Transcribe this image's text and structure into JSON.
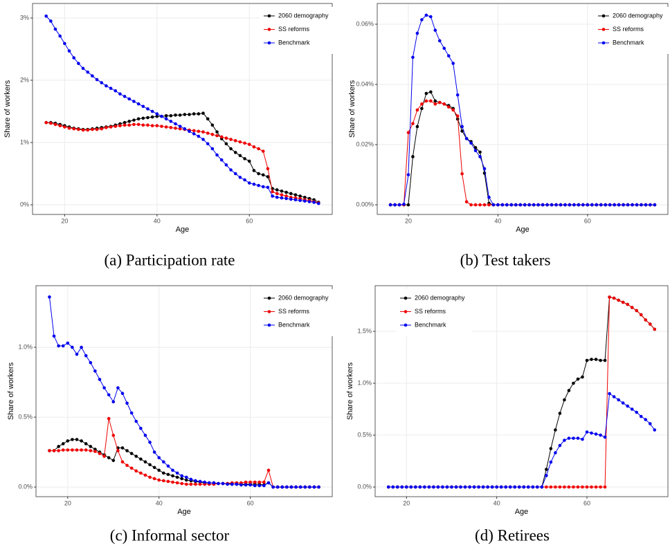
{
  "chart_data": [
    {
      "type": "line",
      "caption": "(a) Participation rate",
      "x_label": "Age",
      "y_label": "Share of workers",
      "x": [
        16,
        17,
        18,
        19,
        20,
        21,
        22,
        23,
        24,
        25,
        26,
        27,
        28,
        29,
        30,
        31,
        32,
        33,
        34,
        35,
        36,
        37,
        38,
        39,
        40,
        41,
        42,
        43,
        44,
        45,
        46,
        47,
        48,
        49,
        50,
        51,
        52,
        53,
        54,
        55,
        56,
        57,
        58,
        59,
        60,
        61,
        62,
        63,
        64,
        65,
        66,
        67,
        68,
        69,
        70,
        71,
        72,
        73,
        74,
        75
      ],
      "xlim": [
        13.05,
        77.95
      ],
      "xticks": [
        20,
        40,
        60
      ],
      "ylim": [
        -0.155,
        3.233
      ],
      "yticks": [
        {
          "value": 0,
          "label": "0%"
        },
        {
          "value": 1,
          "label": "1%"
        },
        {
          "value": 2,
          "label": "2%"
        },
        {
          "value": 3,
          "label": "3%"
        }
      ],
      "grid": true,
      "legend": "top-right",
      "series": [
        {
          "name": "2060 demography",
          "color": "#000000",
          "values": [
            1.32,
            1.32,
            1.31,
            1.29,
            1.27,
            1.25,
            1.23,
            1.22,
            1.21,
            1.21,
            1.22,
            1.23,
            1.24,
            1.25,
            1.26,
            1.28,
            1.3,
            1.32,
            1.34,
            1.36,
            1.38,
            1.39,
            1.4,
            1.41,
            1.42,
            1.42,
            1.43,
            1.43,
            1.44,
            1.44,
            1.45,
            1.45,
            1.46,
            1.46,
            1.47,
            1.38,
            1.28,
            1.17,
            1.06,
            0.98,
            0.9,
            0.84,
            0.79,
            0.74,
            0.7,
            0.55,
            0.5,
            0.48,
            0.45,
            0.26,
            0.24,
            0.22,
            0.2,
            0.18,
            0.16,
            0.14,
            0.12,
            0.1,
            0.08,
            0.04
          ]
        },
        {
          "name": "SS reforms",
          "color": "#ee0000",
          "values": [
            1.32,
            1.31,
            1.29,
            1.27,
            1.25,
            1.23,
            1.22,
            1.21,
            1.2,
            1.2,
            1.21,
            1.21,
            1.22,
            1.24,
            1.25,
            1.26,
            1.27,
            1.28,
            1.28,
            1.29,
            1.29,
            1.28,
            1.28,
            1.27,
            1.27,
            1.26,
            1.25,
            1.24,
            1.23,
            1.22,
            1.21,
            1.2,
            1.19,
            1.18,
            1.17,
            1.15,
            1.13,
            1.11,
            1.09,
            1.07,
            1.05,
            1.03,
            1.01,
            0.99,
            0.97,
            0.93,
            0.9,
            0.86,
            0.58,
            0.21,
            0.18,
            0.16,
            0.14,
            0.12,
            0.11,
            0.1,
            0.08,
            0.07,
            0.05,
            0.03
          ]
        },
        {
          "name": "Benchmark",
          "color": "#0000ee",
          "values": [
            3.03,
            2.95,
            2.82,
            2.71,
            2.59,
            2.47,
            2.36,
            2.27,
            2.19,
            2.13,
            2.07,
            2.01,
            1.96,
            1.91,
            1.87,
            1.83,
            1.78,
            1.74,
            1.7,
            1.66,
            1.62,
            1.58,
            1.54,
            1.5,
            1.46,
            1.42,
            1.38,
            1.34,
            1.3,
            1.26,
            1.22,
            1.18,
            1.14,
            1.1,
            1.05,
            0.98,
            0.9,
            0.8,
            0.72,
            0.64,
            0.56,
            0.5,
            0.44,
            0.4,
            0.35,
            0.33,
            0.31,
            0.29,
            0.28,
            0.14,
            0.12,
            0.11,
            0.1,
            0.09,
            0.08,
            0.07,
            0.06,
            0.05,
            0.04,
            0.02
          ]
        }
      ]
    },
    {
      "type": "line",
      "caption": "(b) Test takers",
      "x_label": "Age",
      "y_label": "Share of workers",
      "x": [
        16,
        17,
        18,
        19,
        20,
        21,
        22,
        23,
        24,
        25,
        26,
        27,
        28,
        29,
        30,
        31,
        32,
        33,
        34,
        35,
        36,
        37,
        38,
        39,
        40,
        41,
        42,
        43,
        44,
        45,
        46,
        47,
        48,
        49,
        50,
        51,
        52,
        53,
        54,
        55,
        56,
        57,
        58,
        59,
        60,
        61,
        62,
        63,
        64,
        65,
        66,
        67,
        68,
        69,
        70,
        71,
        72,
        73,
        74,
        75
      ],
      "xlim": [
        13.05,
        77.95
      ],
      "xticks": [
        20,
        40,
        60
      ],
      "ylim": [
        -0.0032,
        0.0669
      ],
      "yticks": [
        {
          "value": 0,
          "label": "0.00%"
        },
        {
          "value": 0.02,
          "label": "0.02%"
        },
        {
          "value": 0.04,
          "label": "0.04%"
        },
        {
          "value": 0.06,
          "label": "0.06%"
        }
      ],
      "grid": true,
      "legend": "top-right",
      "series": [
        {
          "name": "2060 demography",
          "color": "#000000",
          "values": [
            0,
            0,
            0,
            0,
            0,
            0.016,
            0.026,
            0.032,
            0.037,
            0.0375,
            0.0345,
            0.034,
            0.0335,
            0.033,
            0.032,
            0.0285,
            0.0245,
            0.022,
            0.021,
            0.019,
            0.0175,
            0.0105,
            0.0005,
            0,
            0,
            0,
            0,
            0,
            0,
            0,
            0,
            0,
            0,
            0,
            0,
            0,
            0,
            0,
            0,
            0,
            0,
            0,
            0,
            0,
            0,
            0,
            0,
            0,
            0,
            0,
            0,
            0,
            0,
            0,
            0,
            0,
            0,
            0,
            0,
            0
          ]
        },
        {
          "name": "SS reforms",
          "color": "#ee0000",
          "values": [
            0,
            0,
            0,
            0,
            0.024,
            0.027,
            0.0315,
            0.0335,
            0.0345,
            0.0345,
            0.0335,
            0.034,
            0.0335,
            0.0325,
            0.0315,
            0.0295,
            0.0103,
            0.001,
            0,
            0,
            0,
            0,
            0,
            0,
            0,
            0,
            0,
            0,
            0,
            0,
            0,
            0,
            0,
            0,
            0,
            0,
            0,
            0,
            0,
            0,
            0,
            0,
            0,
            0,
            0,
            0,
            0,
            0,
            0,
            0,
            0,
            0,
            0,
            0,
            0,
            0,
            0,
            0,
            0,
            0
          ]
        },
        {
          "name": "Benchmark",
          "color": "#0000ee",
          "values": [
            0,
            0,
            0,
            0.0002,
            0.01,
            0.049,
            0.057,
            0.0615,
            0.063,
            0.0625,
            0.058,
            0.0545,
            0.052,
            0.0495,
            0.047,
            0.0365,
            0.026,
            0.022,
            0.0205,
            0.018,
            0.016,
            0.012,
            0.0025,
            0,
            0,
            0,
            0,
            0,
            0,
            0,
            0,
            0,
            0,
            0,
            0,
            0,
            0,
            0,
            0,
            0,
            0,
            0,
            0,
            0,
            0,
            0,
            0,
            0,
            0,
            0,
            0,
            0,
            0,
            0,
            0,
            0,
            0,
            0,
            0,
            0
          ]
        }
      ]
    },
    {
      "type": "line",
      "caption": "(c) Informal sector",
      "x_label": "Age",
      "y_label": "Share of workers",
      "x": [
        16,
        17,
        18,
        19,
        20,
        21,
        22,
        23,
        24,
        25,
        26,
        27,
        28,
        29,
        30,
        31,
        32,
        33,
        34,
        35,
        36,
        37,
        38,
        39,
        40,
        41,
        42,
        43,
        44,
        45,
        46,
        47,
        48,
        49,
        50,
        51,
        52,
        53,
        54,
        55,
        56,
        57,
        58,
        59,
        60,
        61,
        62,
        63,
        64,
        65,
        66,
        67,
        68,
        69,
        70,
        71,
        72,
        73,
        74,
        75
      ],
      "xlim": [
        13.05,
        77.95
      ],
      "xticks": [
        20,
        40,
        60
      ],
      "ylim": [
        -0.069,
        1.441
      ],
      "yticks": [
        {
          "value": 0,
          "label": "0.0%"
        },
        {
          "value": 0.5,
          "label": "0.5%"
        },
        {
          "value": 1,
          "label": "1.0%"
        }
      ],
      "grid": true,
      "legend": "top-right",
      "series": [
        {
          "name": "2060 demography",
          "color": "#000000",
          "values": [
            0.26,
            0.26,
            0.29,
            0.31,
            0.33,
            0.34,
            0.34,
            0.33,
            0.31,
            0.29,
            0.27,
            0.25,
            0.23,
            0.21,
            0.19,
            0.28,
            0.28,
            0.26,
            0.24,
            0.22,
            0.2,
            0.18,
            0.16,
            0.14,
            0.12,
            0.1,
            0.09,
            0.08,
            0.07,
            0.06,
            0.05,
            0.045,
            0.04,
            0.035,
            0.03,
            0.03,
            0.03,
            0.025,
            0.025,
            0.025,
            0.02,
            0.02,
            0.02,
            0.02,
            0.02,
            0.02,
            0.02,
            0.015,
            0.03,
            0,
            0,
            0,
            0,
            0,
            0,
            0,
            0,
            0,
            0,
            0
          ]
        },
        {
          "name": "SS reforms",
          "color": "#ee0000",
          "values": [
            0.26,
            0.26,
            0.26,
            0.265,
            0.265,
            0.265,
            0.265,
            0.265,
            0.265,
            0.26,
            0.255,
            0.24,
            0.22,
            0.49,
            0.37,
            0.26,
            0.18,
            0.155,
            0.135,
            0.115,
            0.1,
            0.085,
            0.07,
            0.06,
            0.05,
            0.045,
            0.04,
            0.035,
            0.03,
            0.025,
            0.02,
            0.02,
            0.02,
            0.02,
            0.02,
            0.02,
            0.02,
            0.025,
            0.025,
            0.025,
            0.03,
            0.03,
            0.03,
            0.035,
            0.035,
            0.035,
            0.035,
            0.035,
            0.12,
            0,
            0,
            0,
            0,
            0,
            0,
            0,
            0,
            0,
            0,
            0
          ]
        },
        {
          "name": "Benchmark",
          "color": "#0000ee",
          "values": [
            1.36,
            1.08,
            1.01,
            1.01,
            1.03,
            1.0,
            0.95,
            1.0,
            0.94,
            0.89,
            0.83,
            0.77,
            0.71,
            0.66,
            0.61,
            0.71,
            0.67,
            0.6,
            0.53,
            0.47,
            0.42,
            0.37,
            0.32,
            0.25,
            0.21,
            0.18,
            0.15,
            0.12,
            0.1,
            0.08,
            0.07,
            0.055,
            0.045,
            0.04,
            0.035,
            0.03,
            0.03,
            0.025,
            0.025,
            0.02,
            0.02,
            0.02,
            0.015,
            0.015,
            0.015,
            0.01,
            0.01,
            0.01,
            0.03,
            0,
            0,
            0,
            0,
            0,
            0,
            0,
            0,
            0,
            0,
            0
          ]
        }
      ]
    },
    {
      "type": "line",
      "caption": "(d) Retirees",
      "x_label": "Age",
      "y_label": "Share of workers",
      "x": [
        16,
        17,
        18,
        19,
        20,
        21,
        22,
        23,
        24,
        25,
        26,
        27,
        28,
        29,
        30,
        31,
        32,
        33,
        34,
        35,
        36,
        37,
        38,
        39,
        40,
        41,
        42,
        43,
        44,
        45,
        46,
        47,
        48,
        49,
        50,
        51,
        52,
        53,
        54,
        55,
        56,
        57,
        58,
        59,
        60,
        61,
        62,
        63,
        64,
        65,
        66,
        67,
        68,
        69,
        70,
        71,
        72,
        73,
        74,
        75
      ],
      "xlim": [
        13.05,
        77.95
      ],
      "xticks": [
        20,
        40,
        60
      ],
      "ylim": [
        -0.093,
        1.94
      ],
      "yticks": [
        {
          "value": 0,
          "label": "0.0%"
        },
        {
          "value": 0.5,
          "label": "0.5%"
        },
        {
          "value": 1,
          "label": "1.0%"
        },
        {
          "value": 1.5,
          "label": "1.5%"
        }
      ],
      "grid": true,
      "legend": "top-left",
      "series": [
        {
          "name": "2060 demography",
          "color": "#000000",
          "values": [
            0,
            0,
            0,
            0,
            0,
            0,
            0,
            0,
            0,
            0,
            0,
            0,
            0,
            0,
            0,
            0,
            0,
            0,
            0,
            0,
            0,
            0,
            0,
            0,
            0,
            0,
            0,
            0,
            0,
            0,
            0,
            0,
            0,
            0,
            0,
            0.17,
            0.37,
            0.55,
            0.71,
            0.84,
            0.93,
            1.0,
            1.04,
            1.06,
            1.22,
            1.23,
            1.23,
            1.22,
            1.22,
            1.83,
            1.82,
            1.8,
            1.78,
            1.76,
            1.73,
            1.7,
            1.66,
            1.61,
            1.57,
            1.52
          ]
        },
        {
          "name": "SS reforms",
          "color": "#ee0000",
          "values": [
            0,
            0,
            0,
            0,
            0,
            0,
            0,
            0,
            0,
            0,
            0,
            0,
            0,
            0,
            0,
            0,
            0,
            0,
            0,
            0,
            0,
            0,
            0,
            0,
            0,
            0,
            0,
            0,
            0,
            0,
            0,
            0,
            0,
            0,
            0,
            0,
            0,
            0,
            0,
            0,
            0,
            0,
            0,
            0,
            0,
            0,
            0,
            0,
            0,
            1.83,
            1.82,
            1.8,
            1.78,
            1.76,
            1.73,
            1.7,
            1.66,
            1.61,
            1.57,
            1.52
          ]
        },
        {
          "name": "Benchmark",
          "color": "#0000ee",
          "values": [
            0,
            0,
            0,
            0,
            0,
            0,
            0,
            0,
            0,
            0,
            0,
            0,
            0,
            0,
            0,
            0,
            0,
            0,
            0,
            0,
            0,
            0,
            0,
            0,
            0,
            0,
            0,
            0,
            0,
            0,
            0,
            0,
            0,
            0,
            0,
            0.11,
            0.24,
            0.33,
            0.4,
            0.45,
            0.47,
            0.47,
            0.47,
            0.46,
            0.53,
            0.52,
            0.51,
            0.5,
            0.48,
            0.9,
            0.87,
            0.84,
            0.81,
            0.78,
            0.75,
            0.72,
            0.68,
            0.65,
            0.61,
            0.55
          ]
        }
      ]
    }
  ]
}
